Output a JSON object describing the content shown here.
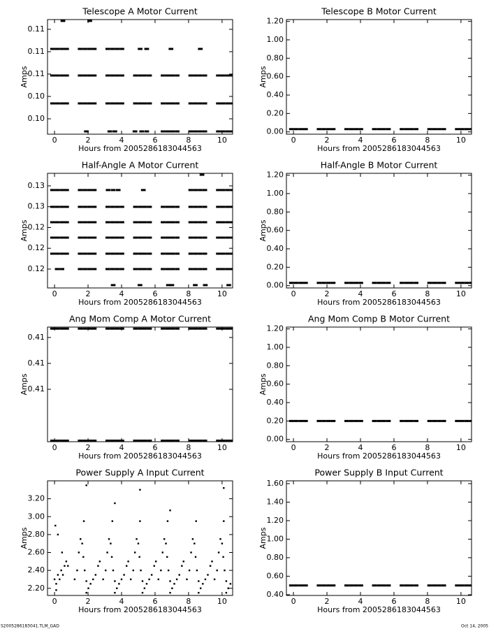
{
  "charts": [
    {
      "type": "scatter",
      "title": "Telescope A Motor Current",
      "xlabel": "Hours from 2005286183044563",
      "ylabel": "Amps",
      "xlim": [
        -0.42,
        10.63
      ],
      "xticks": [
        0,
        2,
        4,
        6,
        8,
        10
      ],
      "ylim": [
        0.09828,
        0.11109
      ],
      "yticks": [
        {
          "value": 0.1,
          "label": "0.10"
        },
        {
          "value": 0.1025,
          "label": "0.10"
        },
        {
          "value": 0.105,
          "label": "0.11"
        },
        {
          "value": 0.1075,
          "label": "0.11"
        },
        {
          "value": 0.11,
          "label": "0.11"
        }
      ],
      "series": [
        {
          "y": 0.10781,
          "x": [
            -0.12,
            0.16,
            0.44,
            0.72,
            1.53,
            1.81,
            2.09,
            2.37,
            3.18,
            3.46,
            3.74,
            4.02,
            5.11,
            5.5,
            6.95,
            8.7
          ]
        },
        {
          "y": 0.10484,
          "x": [
            -0.12,
            0.16,
            0.44,
            0.72,
            1.53,
            1.81,
            2.09,
            2.37,
            3.18,
            3.46,
            3.74,
            4.02,
            4.83,
            5.11,
            5.39,
            5.67,
            6.48,
            6.76,
            7.04,
            7.32,
            8.13,
            8.41,
            8.69,
            8.97,
            9.78,
            10.06,
            10.34,
            10.62
          ]
        },
        {
          "y": 0.10172,
          "x": [
            -0.12,
            0.16,
            0.44,
            0.72,
            1.53,
            1.81,
            2.09,
            2.37,
            3.18,
            3.46,
            3.74,
            4.02,
            4.83,
            5.11,
            5.39,
            5.67,
            6.48,
            6.76,
            7.04,
            7.32,
            8.13,
            8.41,
            8.69,
            8.97,
            9.78,
            10.06,
            10.34,
            10.62
          ]
        },
        {
          "y": 0.09859,
          "x": [
            1.9,
            3.3,
            3.6,
            4.8,
            5.2,
            5.5,
            6.48,
            6.76,
            7.04,
            7.32,
            8.13,
            8.41,
            8.69,
            8.97,
            9.78,
            10.06,
            10.34,
            10.62
          ]
        },
        {
          "y": 0.11094,
          "x": [
            0.5,
            2.1
          ]
        }
      ]
    },
    {
      "type": "scatter",
      "title": "Telescope B Motor Current",
      "xlabel": "Hours from 2005286183044563",
      "ylabel": "Amps",
      "xlim": [
        -0.42,
        10.63
      ],
      "xticks": [
        0,
        2,
        4,
        6,
        8,
        10
      ],
      "ylim": [
        -0.025,
        1.22
      ],
      "yticks": [
        {
          "value": 0,
          "label": "0.00"
        },
        {
          "value": 0.2,
          "label": "0.20"
        },
        {
          "value": 0.4,
          "label": "0.40"
        },
        {
          "value": 0.6,
          "label": "0.60"
        },
        {
          "value": 0.8,
          "label": "0.80"
        },
        {
          "value": 1,
          "label": "1.00"
        },
        {
          "value": 1.2,
          "label": "1.20"
        }
      ],
      "series": [
        {
          "y": 0.03,
          "x": [
            -0.12,
            0.16,
            0.44,
            0.72,
            1.53,
            1.81,
            2.09,
            2.37,
            3.18,
            3.46,
            3.74,
            4.02,
            4.83,
            5.11,
            5.39,
            5.67,
            6.48,
            6.76,
            7.04,
            7.32,
            8.13,
            8.41,
            8.69,
            8.97,
            9.78,
            10.06,
            10.34,
            10.62
          ]
        }
      ]
    },
    {
      "type": "scatter",
      "title": "Half-Angle A Motor Current",
      "xlabel": "Hours from 2005286183044563",
      "ylabel": "Amps",
      "xlim": [
        -0.42,
        10.63
      ],
      "xticks": [
        0,
        2,
        4,
        6,
        8,
        10
      ],
      "ylim": [
        0.11773,
        0.13151
      ],
      "yticks": [
        {
          "value": 0.12,
          "label": "0.12"
        },
        {
          "value": 0.1225,
          "label": "0.12"
        },
        {
          "value": 0.125,
          "label": "0.12"
        },
        {
          "value": 0.1275,
          "label": "0.13"
        },
        {
          "value": 0.13,
          "label": "0.13"
        }
      ],
      "series": [
        {
          "y": 0.1295,
          "x": [
            -0.12,
            0.16,
            0.44,
            0.72,
            1.53,
            1.81,
            2.09,
            2.37,
            3.2,
            3.5,
            3.8,
            5.3,
            8.13,
            8.41,
            8.69,
            8.97,
            9.78,
            10.06,
            10.34,
            10.62
          ]
        },
        {
          "y": 0.12748,
          "x": [
            -0.12,
            0.16,
            0.44,
            0.72,
            1.53,
            1.81,
            2.09,
            2.37,
            3.18,
            3.46,
            3.74,
            4.02,
            4.83,
            5.11,
            5.39,
            5.67,
            6.48,
            6.76,
            7.04,
            7.32,
            8.13,
            8.41,
            8.69,
            8.97,
            9.78,
            10.06,
            10.34,
            10.62
          ]
        },
        {
          "y": 0.12563,
          "x": [
            -0.12,
            0.16,
            0.44,
            0.72,
            1.53,
            1.81,
            2.09,
            2.37,
            3.18,
            3.46,
            3.74,
            4.02,
            4.83,
            5.11,
            5.39,
            5.67,
            6.48,
            6.76,
            7.04,
            7.32,
            8.13,
            8.41,
            8.69,
            8.97,
            9.78,
            10.06,
            10.34,
            10.62
          ]
        },
        {
          "y": 0.12378,
          "x": [
            -0.12,
            0.16,
            0.44,
            0.72,
            1.53,
            1.81,
            2.09,
            2.37,
            3.18,
            3.46,
            3.74,
            4.02,
            4.83,
            5.11,
            5.39,
            5.67,
            6.48,
            6.76,
            7.04,
            7.32,
            8.13,
            8.41,
            8.69,
            8.97,
            9.78,
            10.06,
            10.34,
            10.62
          ]
        },
        {
          "y": 0.12185,
          "x": [
            -0.12,
            0.16,
            0.44,
            0.72,
            1.53,
            1.81,
            2.09,
            2.37,
            3.18,
            3.46,
            3.74,
            4.02,
            4.83,
            5.11,
            5.39,
            5.67,
            6.48,
            6.76,
            7.04,
            7.32,
            8.13,
            8.41,
            8.69,
            8.97,
            9.78,
            10.06,
            10.34,
            10.62
          ]
        },
        {
          "y": 0.12,
          "x": [
            0.16,
            0.44,
            1.53,
            1.81,
            2.09,
            2.37,
            3.18,
            3.46,
            3.74,
            4.02,
            4.83,
            5.11,
            5.39,
            5.67,
            6.48,
            6.76,
            7.04,
            7.32,
            8.13,
            8.41,
            8.69,
            8.97,
            9.78,
            10.06,
            10.34,
            10.62
          ]
        },
        {
          "y": 0.11807,
          "x": [
            3.5,
            5.1,
            6.8,
            7.0,
            8.4,
            9.0,
            10.4
          ]
        },
        {
          "y": 0.13134,
          "x": [
            8.8
          ]
        }
      ]
    },
    {
      "type": "scatter",
      "title": "Half-Angle B Motor Current",
      "xlabel": "Hours from 2005286183044563",
      "ylabel": "Amps",
      "xlim": [
        -0.42,
        10.63
      ],
      "xticks": [
        0,
        2,
        4,
        6,
        8,
        10
      ],
      "ylim": [
        -0.025,
        1.22
      ],
      "yticks": [
        {
          "value": 0,
          "label": "0.00"
        },
        {
          "value": 0.2,
          "label": "0.20"
        },
        {
          "value": 0.4,
          "label": "0.40"
        },
        {
          "value": 0.6,
          "label": "0.60"
        },
        {
          "value": 0.8,
          "label": "0.80"
        },
        {
          "value": 1,
          "label": "1.00"
        },
        {
          "value": 1.2,
          "label": "1.20"
        }
      ],
      "series": [
        {
          "y": 0.03,
          "x": [
            -0.12,
            0.16,
            0.44,
            0.72,
            1.53,
            1.81,
            2.09,
            2.37,
            3.18,
            3.46,
            3.74,
            4.02,
            4.83,
            5.11,
            5.39,
            5.67,
            6.48,
            6.76,
            7.04,
            7.32,
            8.13,
            8.41,
            8.69,
            8.97,
            9.78,
            10.06,
            10.34,
            10.62
          ]
        }
      ]
    },
    {
      "type": "scatter",
      "title": "Ang Mom Comp A Motor Current",
      "xlabel": "Hours from 2005286183044563",
      "ylabel": "Amps",
      "xlim": [
        -0.42,
        10.63
      ],
      "xticks": [
        0,
        2,
        4,
        6,
        8,
        10
      ],
      "ylim": [
        0.40949,
        0.4117
      ],
      "yticks": [
        {
          "value": 0.4105,
          "label": "0.41"
        },
        {
          "value": 0.411,
          "label": "0.41"
        },
        {
          "value": 0.4115,
          "label": "0.41"
        }
      ],
      "series": [
        {
          "y": 0.41167,
          "x": [
            -0.12,
            0.16,
            0.44,
            0.72,
            1.53,
            1.81,
            2.09,
            2.37,
            3.18,
            3.46,
            3.74,
            4.02,
            4.83,
            5.11,
            5.39,
            5.67,
            6.48,
            6.76,
            7.04,
            7.32,
            8.13,
            8.41,
            8.69,
            8.97,
            9.78,
            10.06,
            10.34,
            10.62
          ]
        },
        {
          "y": 0.40951,
          "x": [
            -0.12,
            0.16,
            0.44,
            0.72,
            1.53,
            1.81,
            2.09,
            2.37,
            3.18,
            3.46,
            3.74,
            4.02,
            4.83,
            5.11,
            5.39,
            5.67,
            6.48,
            6.76,
            7.04,
            7.32,
            8.13,
            8.41,
            8.69,
            8.97,
            9.78,
            10.06,
            10.34,
            10.62
          ]
        }
      ]
    },
    {
      "type": "scatter",
      "title": "Ang Mom Comp B Motor Current",
      "xlabel": "Hours from 2005286183044563",
      "ylabel": "Amps",
      "xlim": [
        -0.42,
        10.63
      ],
      "xticks": [
        0,
        2,
        4,
        6,
        8,
        10
      ],
      "ylim": [
        -0.025,
        1.22
      ],
      "yticks": [
        {
          "value": 0,
          "label": "0.00"
        },
        {
          "value": 0.2,
          "label": "0.20"
        },
        {
          "value": 0.4,
          "label": "0.40"
        },
        {
          "value": 0.6,
          "label": "0.60"
        },
        {
          "value": 0.8,
          "label": "0.80"
        },
        {
          "value": 1,
          "label": "1.00"
        },
        {
          "value": 1.2,
          "label": "1.20"
        }
      ],
      "series": [
        {
          "y": 0.2,
          "x": [
            -0.12,
            0.16,
            0.44,
            0.72,
            1.53,
            1.81,
            2.09,
            2.37,
            3.18,
            3.46,
            3.74,
            4.02,
            4.83,
            5.11,
            5.39,
            5.67,
            6.48,
            6.76,
            7.04,
            7.32,
            8.13,
            8.41,
            8.69,
            8.97,
            9.78,
            10.06,
            10.34,
            10.62
          ]
        }
      ]
    },
    {
      "type": "scatter",
      "title": "Power Supply A Input Current",
      "xlabel": "Hours from 2005286183044563",
      "ylabel": "Amps",
      "xlim": [
        -0.42,
        10.63
      ],
      "xticks": [
        0,
        2,
        4,
        6,
        8,
        10
      ],
      "ylim": [
        2.12,
        3.4
      ],
      "yticks": [
        {
          "value": 2.2,
          "label": "2.20"
        },
        {
          "value": 2.4,
          "label": "2.40"
        },
        {
          "value": 2.6,
          "label": "2.60"
        },
        {
          "value": 2.8,
          "label": "2.80"
        },
        {
          "value": 3,
          "label": "3.00"
        },
        {
          "value": 3.2,
          "label": "3.20"
        }
      ],
      "series": [
        {
          "x": [
            0,
            0.1,
            0.2,
            0.3,
            0.4,
            0.5,
            0.6,
            0.7,
            0.8,
            0.05,
            0.2,
            0.45,
            0.1,
            1.2,
            1.35,
            1.45,
            1.55,
            1.65,
            1.72,
            1.8,
            1.9,
            2.02,
            2.15,
            2.3,
            2.45,
            2.6,
            2.7,
            1.75,
            1.9,
            2.9,
            3.05,
            3.15,
            3.25,
            3.35,
            3.42,
            3.5,
            3.6,
            3.72,
            3.85,
            4.0,
            4.15,
            4.3,
            4.4,
            3.45,
            3.6,
            4.55,
            4.7,
            4.8,
            4.9,
            5.0,
            5.07,
            5.15,
            5.25,
            5.37,
            5.5,
            5.65,
            5.8,
            5.95,
            6.05,
            5.1,
            5.25,
            6.2,
            6.35,
            6.45,
            6.55,
            6.65,
            6.72,
            6.8,
            6.9,
            7.02,
            7.15,
            7.3,
            7.45,
            7.6,
            7.7,
            6.75,
            6.9,
            7.9,
            8.05,
            8.15,
            8.25,
            8.35,
            8.42,
            8.5,
            8.6,
            8.72,
            8.85,
            9.0,
            9.15,
            9.3,
            9.4,
            8.45,
            8.6,
            9.55,
            9.7,
            9.8,
            9.9,
            10.0,
            10.07,
            10.15,
            10.25,
            10.37,
            10.5,
            10.1,
            10.25,
            1.9,
            3.6,
            5.1,
            6.9,
            10.1
          ],
          "y": [
            2.3,
            2.25,
            2.35,
            2.3,
            2.4,
            2.35,
            2.45,
            2.5,
            2.45,
            2.9,
            2.8,
            2.6,
            2.18,
            2.3,
            2.4,
            2.6,
            2.75,
            2.7,
            2.55,
            2.4,
            2.28,
            2.2,
            2.25,
            2.3,
            2.35,
            2.45,
            2.5,
            2.95,
            2.15,
            2.3,
            2.4,
            2.6,
            2.75,
            2.7,
            2.55,
            2.4,
            2.28,
            2.2,
            2.25,
            2.3,
            2.35,
            2.45,
            2.5,
            2.95,
            2.15,
            2.3,
            2.4,
            2.6,
            2.75,
            2.7,
            2.55,
            2.4,
            2.28,
            2.2,
            2.25,
            2.3,
            2.35,
            2.45,
            2.5,
            2.95,
            2.15,
            2.3,
            2.4,
            2.6,
            2.75,
            2.7,
            2.55,
            2.4,
            2.28,
            2.2,
            2.25,
            2.3,
            2.35,
            2.45,
            2.5,
            2.95,
            2.15,
            2.3,
            2.4,
            2.6,
            2.75,
            2.7,
            2.55,
            2.4,
            2.28,
            2.2,
            2.25,
            2.3,
            2.35,
            2.45,
            2.5,
            2.95,
            2.15,
            2.3,
            2.4,
            2.6,
            2.75,
            2.7,
            2.55,
            2.4,
            2.28,
            2.2,
            2.25,
            2.95,
            2.15,
            3.35,
            3.15,
            3.3,
            3.07,
            3.32
          ]
        }
      ]
    },
    {
      "type": "scatter",
      "title": "Power Supply B Input Current",
      "xlabel": "Hours from 2005286183044563",
      "ylabel": "Amps",
      "xlim": [
        -0.42,
        10.63
      ],
      "xticks": [
        0,
        2,
        4,
        6,
        8,
        10
      ],
      "ylim": [
        0.392,
        1.63
      ],
      "yticks": [
        {
          "value": 0.4,
          "label": "0.40"
        },
        {
          "value": 0.6,
          "label": "0.60"
        },
        {
          "value": 0.8,
          "label": "0.80"
        },
        {
          "value": 1,
          "label": "1.00"
        },
        {
          "value": 1.2,
          "label": "1.20"
        },
        {
          "value": 1.4,
          "label": "1.40"
        },
        {
          "value": 1.6,
          "label": "1.60"
        }
      ],
      "series": [
        {
          "y": 0.5,
          "x": [
            -0.12,
            0.16,
            0.44,
            0.72,
            1.53,
            1.81,
            2.09,
            2.37,
            3.18,
            3.46,
            3.74,
            4.02,
            4.83,
            5.11,
            5.39,
            5.67,
            6.48,
            6.76,
            7.04,
            7.32,
            8.13,
            8.41,
            8.69,
            8.97,
            9.78,
            10.06,
            10.34,
            10.62
          ]
        }
      ]
    }
  ],
  "footer": {
    "left": "S2005286183041.TLM_GAD",
    "right": "Oct 14, 2005"
  }
}
